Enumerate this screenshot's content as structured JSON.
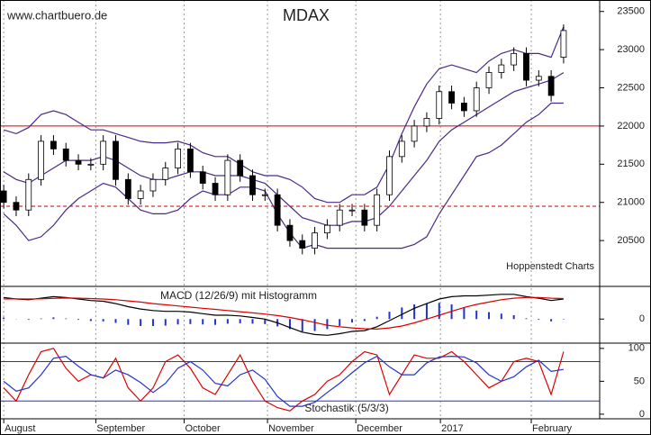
{
  "chart_data": [
    {
      "type": "candlestick",
      "title": "MDAX",
      "watermark": "www.chartbuero.de",
      "source": "Hoppenstedt Charts",
      "xlim": [
        -0.3,
        47.9
      ],
      "ylim": [
        19900,
        23650
      ],
      "yticks": [
        20500,
        21000,
        21500,
        22000,
        22500,
        23000,
        23500
      ],
      "reference_lines": [
        {
          "value": 22000,
          "color": "#cc0000",
          "style": "solid"
        },
        {
          "value": 20950,
          "color": "#cc0000",
          "style": "dashed"
        }
      ],
      "up_color": "#ffffff",
      "down_color": "#000000",
      "open": [
        21150,
        21000,
        20900,
        21300,
        21800,
        21700,
        21550,
        21500,
        21500,
        21800,
        21300,
        21050,
        21150,
        21300,
        21450,
        21700,
        21400,
        21250,
        21100,
        21550,
        21350,
        21100,
        21100,
        20700,
        20500,
        20400,
        20600,
        20700,
        20900,
        20900,
        20700,
        21100,
        21600,
        21800,
        22000,
        22100,
        22450,
        22300,
        22200,
        22500,
        22700,
        22800,
        22950,
        22600,
        22650,
        22900
      ],
      "high": [
        21230,
        21080,
        21380,
        21880,
        21880,
        21780,
        21630,
        21580,
        21880,
        21880,
        21380,
        21230,
        21380,
        21530,
        21780,
        21780,
        21480,
        21330,
        21630,
        21630,
        21430,
        21180,
        21180,
        20780,
        20580,
        20680,
        20780,
        20980,
        20980,
        20980,
        21180,
        21680,
        21880,
        22080,
        22180,
        22530,
        22530,
        22380,
        22580,
        22780,
        22880,
        23030,
        23030,
        22730,
        22730,
        23330
      ],
      "low": [
        20920,
        20820,
        20820,
        21220,
        21620,
        21470,
        21420,
        21420,
        21420,
        21220,
        20970,
        20970,
        21070,
        21220,
        21370,
        21320,
        21170,
        21020,
        21020,
        21270,
        21020,
        21020,
        20620,
        20420,
        20320,
        20320,
        20520,
        20620,
        20820,
        20620,
        20620,
        21020,
        21520,
        21720,
        21920,
        22020,
        22220,
        22120,
        22120,
        22420,
        22620,
        22720,
        22520,
        22520,
        22320,
        22820
      ],
      "close": [
        21000,
        20900,
        21300,
        21800,
        21700,
        21550,
        21500,
        21500,
        21800,
        21300,
        21050,
        21150,
        21300,
        21450,
        21700,
        21400,
        21250,
        21100,
        21550,
        21350,
        21100,
        21100,
        20700,
        20500,
        20400,
        20600,
        20700,
        20900,
        20900,
        20700,
        21100,
        21600,
        21800,
        22000,
        22100,
        22450,
        22300,
        22200,
        22500,
        22700,
        22800,
        22950,
        22600,
        22650,
        22400,
        23250
      ],
      "series": [
        {
          "color": "#4b2a86",
          "values": [
            21950,
            21900,
            21980,
            22150,
            22200,
            22150,
            22050,
            21950,
            21950,
            21900,
            21850,
            21800,
            21780,
            21780,
            21800,
            21750,
            21650,
            21600,
            21600,
            21500,
            21400,
            21350,
            21350,
            21300,
            21200,
            21050,
            21000,
            21000,
            21100,
            21100,
            21200,
            21500,
            21900,
            22250,
            22550,
            22750,
            22800,
            22750,
            22700,
            22850,
            22950,
            23000,
            22950,
            22950,
            22900,
            23300
          ]
        },
        {
          "color": "#4b2a86",
          "values": [
            21400,
            21300,
            21250,
            21350,
            21450,
            21550,
            21550,
            21550,
            21600,
            21550,
            21450,
            21350,
            21300,
            21300,
            21350,
            21400,
            21400,
            21350,
            21350,
            21350,
            21300,
            21250,
            21100,
            20950,
            20800,
            20750,
            20700,
            20700,
            20750,
            20750,
            20800,
            20950,
            21150,
            21350,
            21550,
            21800,
            21950,
            22050,
            22150,
            22250,
            22350,
            22450,
            22500,
            22550,
            22600,
            22700
          ]
        },
        {
          "color": "#4b2a86",
          "values": [
            20850,
            20700,
            20500,
            20550,
            20700,
            20900,
            21050,
            21150,
            21250,
            21200,
            21050,
            20900,
            20850,
            20850,
            20900,
            21050,
            21150,
            21100,
            21100,
            21200,
            21200,
            21150,
            20850,
            20600,
            20400,
            20450,
            20400,
            20400,
            20400,
            20400,
            20400,
            20400,
            20400,
            20450,
            20550,
            20850,
            21100,
            21350,
            21600,
            21650,
            21750,
            21900,
            22050,
            22150,
            22300,
            22300
          ]
        }
      ]
    },
    {
      "type": "line",
      "title": "MACD (12/26/9) mit Histogramm",
      "xlim": [
        -0.3,
        47.9
      ],
      "ylim": [
        -312,
        423
      ],
      "yticks": [
        0
      ],
      "histogram": {
        "color": "#2233cc",
        "values": [
          20,
          -2,
          -10,
          8,
          22,
          8,
          -10,
          -26,
          -30,
          -50,
          -75,
          -90,
          -90,
          -85,
          -70,
          -65,
          -70,
          -75,
          -60,
          -55,
          -60,
          -65,
          -95,
          -130,
          -160,
          -155,
          -130,
          -90,
          -45,
          -25,
          30,
          95,
          150,
          190,
          200,
          210,
          190,
          150,
          110,
          90,
          70,
          50,
          10,
          -10,
          -30,
          -5
        ]
      },
      "series": [
        {
          "color": "#000000",
          "values": [
            280,
            260,
            250,
            270,
            290,
            280,
            260,
            240,
            230,
            200,
            160,
            130,
            110,
            100,
            100,
            90,
            70,
            50,
            50,
            40,
            20,
            0,
            -50,
            -110,
            -170,
            -200,
            -210,
            -190,
            -160,
            -150,
            -100,
            -20,
            60,
            140,
            200,
            260,
            290,
            300,
            300,
            310,
            320,
            320,
            290,
            270,
            240,
            260
          ]
        },
        {
          "color": "#dd0000",
          "values": [
            260,
            262,
            260,
            262,
            268,
            272,
            270,
            266,
            260,
            250,
            235,
            220,
            200,
            185,
            170,
            155,
            140,
            125,
            110,
            95,
            80,
            65,
            45,
            20,
            -10,
            -45,
            -80,
            -100,
            -115,
            -125,
            -130,
            -115,
            -90,
            -50,
            0,
            50,
            100,
            150,
            190,
            220,
            250,
            270,
            280,
            280,
            270,
            265
          ]
        }
      ]
    },
    {
      "type": "line",
      "title": "Stochastik (5/3/3)",
      "xlim": [
        -0.3,
        47.9
      ],
      "ylim": [
        -7,
        108
      ],
      "yticks": [
        0,
        50,
        100
      ],
      "reference_lines": [
        {
          "value": 80,
          "color": "#2233cc",
          "style": "solid"
        },
        {
          "value": 20,
          "color": "#2233cc",
          "style": "solid"
        }
      ],
      "xticks": [
        {
          "value": 0,
          "label": "August"
        },
        {
          "value": 7.4,
          "label": "September"
        },
        {
          "value": 14.5,
          "label": "October"
        },
        {
          "value": 21.2,
          "label": "November"
        },
        {
          "value": 28.3,
          "label": "December"
        },
        {
          "value": 35.1,
          "label": "2017"
        },
        {
          "value": 42.4,
          "label": "February"
        }
      ],
      "series": [
        {
          "color": "#dd0000",
          "values": [
            40,
            20,
            60,
            95,
            100,
            70,
            50,
            60,
            55,
            85,
            40,
            20,
            40,
            80,
            90,
            70,
            40,
            30,
            60,
            90,
            50,
            20,
            10,
            5,
            20,
            30,
            50,
            60,
            80,
            95,
            90,
            30,
            60,
            90,
            85,
            85,
            95,
            80,
            60,
            40,
            50,
            80,
            85,
            80,
            30,
            95
          ]
        },
        {
          "color": "#2233cc",
          "values": [
            50,
            35,
            40,
            60,
            85,
            88,
            73,
            60,
            55,
            67,
            60,
            48,
            33,
            47,
            70,
            80,
            67,
            47,
            43,
            60,
            67,
            53,
            27,
            12,
            12,
            18,
            33,
            47,
            63,
            78,
            88,
            72,
            60,
            60,
            78,
            87,
            88,
            87,
            78,
            60,
            50,
            57,
            72,
            82,
            65,
            68
          ]
        }
      ]
    }
  ]
}
